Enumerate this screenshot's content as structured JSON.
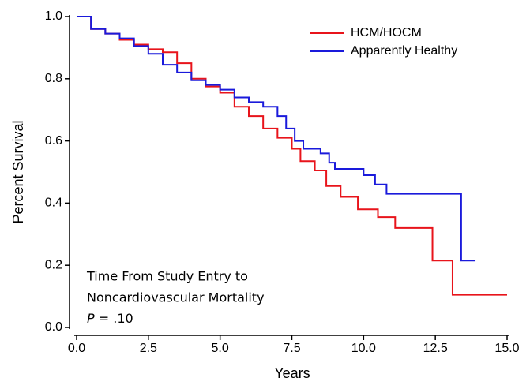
{
  "chart_data": {
    "type": "step",
    "xlabel": "Years",
    "ylabel": "Percent Survival",
    "annotation": [
      "Time From Study Entry to",
      "Noncardiovascular Mortality"
    ],
    "p_label": "P",
    "p_value": "= .10",
    "xlim": [
      0,
      15
    ],
    "ylim": [
      0,
      1
    ],
    "xticks": [
      {
        "value": 0,
        "label": "0.0"
      },
      2.5,
      {
        "value": 5,
        "label": "5.0"
      },
      7.5,
      {
        "value": 10,
        "label": "10.0"
      },
      12.5,
      {
        "value": 15,
        "label": "15.0"
      }
    ],
    "yticks": [
      {
        "value": 0,
        "label": "0.0"
      },
      0.2,
      0.4,
      0.6,
      0.8,
      {
        "value": 1,
        "label": "1.0"
      }
    ],
    "legend": "upper right",
    "series": [
      {
        "name": "HCM/HOCM",
        "color": "#e8141b",
        "x": [
          0,
          0.5,
          1.0,
          1.5,
          2.0,
          2.5,
          3.0,
          3.5,
          4.0,
          4.5,
          5.0,
          5.5,
          6.0,
          6.5,
          7.0,
          7.5,
          7.8,
          8.3,
          8.7,
          9.2,
          9.8,
          10.5,
          11.1,
          12.4,
          13.1,
          15.0
        ],
        "values": [
          1.0,
          0.96,
          0.945,
          0.925,
          0.91,
          0.895,
          0.885,
          0.85,
          0.8,
          0.775,
          0.755,
          0.71,
          0.68,
          0.64,
          0.61,
          0.575,
          0.535,
          0.505,
          0.455,
          0.42,
          0.38,
          0.355,
          0.32,
          0.215,
          0.105,
          0.105
        ]
      },
      {
        "name": "Apparently Healthy",
        "color": "#1a1adb",
        "x": [
          0,
          0.5,
          1.0,
          1.5,
          2.0,
          2.5,
          3.0,
          3.5,
          4.0,
          4.5,
          5.0,
          5.5,
          6.0,
          6.5,
          7.0,
          7.3,
          7.6,
          7.9,
          8.5,
          8.8,
          9.0,
          10.0,
          10.4,
          10.8,
          13.4,
          13.9
        ],
        "values": [
          1.0,
          0.96,
          0.945,
          0.93,
          0.905,
          0.88,
          0.845,
          0.82,
          0.795,
          0.78,
          0.765,
          0.74,
          0.725,
          0.71,
          0.68,
          0.64,
          0.6,
          0.575,
          0.56,
          0.53,
          0.51,
          0.49,
          0.46,
          0.43,
          0.215,
          0.215
        ]
      }
    ]
  }
}
